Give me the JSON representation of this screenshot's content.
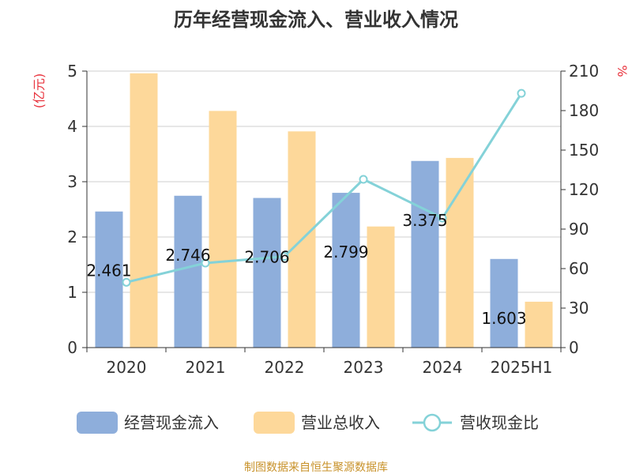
{
  "chart_data": {
    "type": "bar",
    "title": "历年经营现金流入、营业收入情况",
    "categories": [
      "2020",
      "2021",
      "2022",
      "2023",
      "2024",
      "2025H1"
    ],
    "y_left": {
      "unit_label": "(亿元)",
      "range": [
        0,
        5
      ],
      "ticks": [
        "0",
        "1",
        "2",
        "3",
        "4",
        "5"
      ]
    },
    "y_right": {
      "unit_label": "%",
      "range": [
        0,
        210
      ],
      "ticks": [
        "0",
        "30",
        "60",
        "90",
        "120",
        "150",
        "180",
        "210"
      ]
    },
    "series": [
      {
        "name": "经营现金流入",
        "kind": "bar",
        "axis": "left",
        "color": "#8eaedb",
        "values": [
          2.461,
          2.746,
          2.706,
          2.799,
          3.375,
          1.603
        ],
        "labels": [
          "2.461",
          "2.746",
          "2.706",
          "2.799",
          "3.375",
          "1.603"
        ]
      },
      {
        "name": "营业总收入",
        "kind": "bar",
        "axis": "left",
        "color": "#fdd89a",
        "values": [
          4.96,
          4.28,
          3.91,
          2.19,
          3.43,
          0.83
        ]
      },
      {
        "name": "营收现金比",
        "kind": "line",
        "axis": "right",
        "color": "#84d2d8",
        "values": [
          49.6,
          64.2,
          69.2,
          127.8,
          98.4,
          193.1
        ]
      }
    ],
    "grid": true,
    "legend_position": "bottom"
  },
  "source_note": "制图数据来自恒生聚源数据库"
}
